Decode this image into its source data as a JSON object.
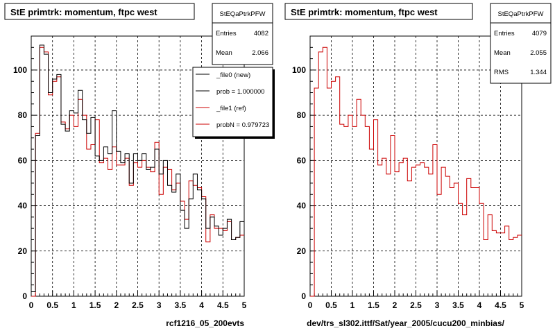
{
  "footer_left": "",
  "colors": {
    "new": "#000000",
    "ref": "#cc0000",
    "grid": "#000000"
  },
  "chart_data": [
    {
      "type": "histogram",
      "title": "StE primtrk: momentum, ftpc west",
      "stats": {
        "name": "StEQaPtrkPFW",
        "rows": [
          {
            "label": "Entries",
            "value": "4082"
          },
          {
            "label": "Mean",
            "value": "2.066"
          }
        ]
      },
      "legend": [
        {
          "label": "_file0 (new)",
          "color": "#000000"
        },
        {
          "label": "prob = 1.000000",
          "color": "#000000"
        },
        {
          "label": "_file1 (ref)",
          "color": "#cc0000"
        },
        {
          "label": "probN = 0.979723",
          "color": "#cc0000"
        }
      ],
      "xlabel": "rcf1216_05_200evts",
      "xlim": [
        0,
        5
      ],
      "ylim": [
        0,
        115
      ],
      "xticks": [
        "0",
        "0.5",
        "1",
        "1.5",
        "2",
        "2.5",
        "3",
        "3.5",
        "4",
        "4.5",
        "5"
      ],
      "yticks": [
        "0",
        "20",
        "40",
        "60",
        "80",
        "100"
      ],
      "grid": true,
      "bin_width": 0.1,
      "series": [
        {
          "name": "_file0 (new)",
          "color": "#000000",
          "values": [
            2,
            71,
            111,
            107,
            90,
            96,
            98,
            76,
            73,
            82,
            81,
            91,
            78,
            72,
            79,
            62,
            60,
            66,
            63,
            82,
            64,
            59,
            63,
            50,
            63,
            60,
            63,
            56,
            57,
            65,
            54,
            60,
            49,
            46,
            54,
            38,
            30,
            43,
            54,
            47,
            43,
            30,
            35,
            31,
            27,
            30,
            34,
            25,
            26,
            33
          ]
        },
        {
          "name": "_file1 (ref)",
          "color": "#cc0000",
          "values": [
            0,
            72,
            110,
            108,
            89,
            95,
            97,
            77,
            74,
            80,
            75,
            87,
            80,
            65,
            67,
            78,
            59,
            61,
            56,
            66,
            58,
            58,
            61,
            49,
            59,
            57,
            60,
            57,
            55,
            68,
            45,
            57,
            56,
            47,
            50,
            42,
            34,
            51,
            49,
            48,
            44,
            24,
            36,
            30,
            30,
            29,
            33,
            25,
            26,
            27
          ]
        }
      ]
    },
    {
      "type": "histogram",
      "title": "StE primtrk: momentum, ftpc west",
      "stats": {
        "name": "StEQaPtrkPFW",
        "rows": [
          {
            "label": "Entries",
            "value": "4079"
          },
          {
            "label": "Mean",
            "value": "2.055"
          },
          {
            "label": "RMS",
            "value": "1.344"
          }
        ]
      },
      "legend": [],
      "xlabel": "dev/trs_sl302.ittf/Sat/year_2005/cucu200_minbias/",
      "xlim": [
        0,
        5
      ],
      "ylim": [
        0,
        115
      ],
      "xticks": [
        "0",
        "0.5",
        "1",
        "1.5",
        "2",
        "2.5",
        "3",
        "3.5",
        "4",
        "4.5",
        "5"
      ],
      "yticks": [
        "0",
        "20",
        "40",
        "60",
        "80",
        "100"
      ],
      "grid": true,
      "bin_width": 0.1,
      "series": [
        {
          "name": "",
          "color": "#cc0000",
          "values": [
            0,
            92,
            108,
            110,
            92,
            95,
            97,
            76,
            75,
            80,
            75,
            87,
            80,
            75,
            65,
            78,
            58,
            61,
            54,
            71,
            55,
            59,
            61,
            51,
            57,
            58,
            59,
            57,
            54,
            67,
            45,
            57,
            53,
            48,
            50,
            41,
            36,
            52,
            48,
            48,
            41,
            25,
            36,
            29,
            28,
            28,
            31,
            25,
            26,
            27
          ]
        }
      ]
    }
  ]
}
